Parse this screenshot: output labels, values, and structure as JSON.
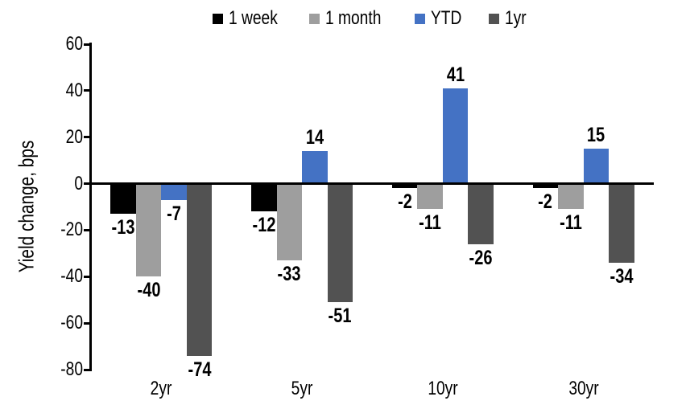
{
  "chart_data": {
    "type": "bar",
    "title": "",
    "ylabel": "Yield change, bps",
    "xlabel": "",
    "categories": [
      "2yr",
      "5yr",
      "10yr",
      "30yr"
    ],
    "series": [
      {
        "name": "1 week",
        "color": "#000000",
        "values": [
          -13,
          -12,
          -2,
          -2
        ]
      },
      {
        "name": "1 month",
        "color": "#9E9E9E",
        "values": [
          -40,
          -33,
          -11,
          -11
        ]
      },
      {
        "name": "YTD",
        "color": "#4472C4",
        "values": [
          -7,
          14,
          41,
          15
        ]
      },
      {
        "name": "1yr",
        "color": "#525252",
        "values": [
          -74,
          -51,
          -26,
          -34
        ]
      }
    ],
    "ylim": [
      -80,
      60
    ],
    "yticks": [
      60,
      40,
      20,
      0,
      -20,
      -40,
      -60,
      -80
    ],
    "grid": false,
    "legend_position": "top",
    "data_labels": true,
    "axis_color": "#000000",
    "background_color": "#FFFFFF"
  }
}
